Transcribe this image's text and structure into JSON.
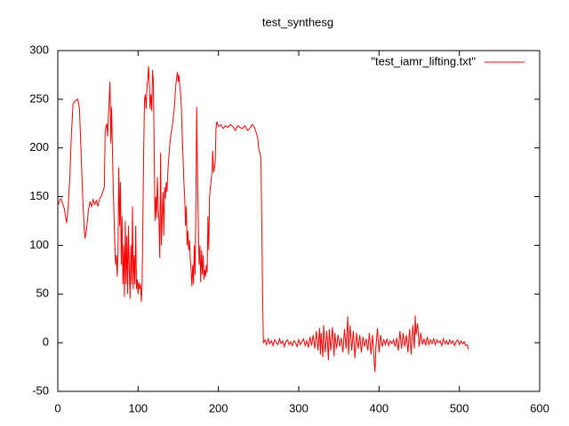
{
  "chart_data": {
    "type": "line",
    "title": "test_synthesg",
    "x": [
      0,
      2,
      4,
      6,
      8,
      10,
      11,
      13,
      15,
      17,
      19,
      21,
      23,
      25,
      27,
      29,
      31,
      33,
      34,
      36,
      38,
      40,
      42,
      44,
      46,
      48,
      50,
      52,
      54,
      56,
      58,
      59,
      61,
      62,
      63,
      65,
      66,
      67,
      68,
      69,
      70,
      71,
      72,
      73,
      74,
      75,
      76,
      77,
      78,
      79,
      80,
      81,
      82,
      83,
      84,
      85,
      86,
      87,
      88,
      89,
      90,
      91,
      92,
      93,
      94,
      95,
      96,
      97,
      98,
      99,
      100,
      101,
      102,
      103,
      104,
      105,
      106,
      107,
      108,
      109,
      110,
      111,
      112,
      113,
      114,
      115,
      116,
      117,
      118,
      119,
      120,
      121,
      122,
      123,
      124,
      125,
      126,
      127,
      128,
      129,
      130,
      131,
      132,
      133,
      134,
      135,
      136,
      137,
      139,
      141,
      143,
      145,
      147,
      149,
      150,
      151,
      152,
      153,
      154,
      155,
      156,
      157,
      158,
      159,
      160,
      161,
      162,
      163,
      164,
      165,
      166,
      167,
      168,
      169,
      170,
      171,
      172,
      173,
      174,
      175,
      176,
      177,
      178,
      179,
      180,
      181,
      182,
      183,
      184,
      185,
      186,
      187,
      188,
      189,
      190,
      192,
      193,
      194,
      196,
      197,
      198,
      200,
      203,
      206,
      209,
      212,
      215,
      218,
      221,
      224,
      227,
      230,
      233,
      236,
      239,
      242,
      245,
      247,
      249,
      250,
      251,
      252,
      253,
      254,
      255,
      256,
      258,
      260,
      262,
      264,
      266,
      268,
      270,
      272,
      274,
      276,
      278,
      280,
      282,
      284,
      286,
      288,
      290,
      292,
      294,
      296,
      298,
      300,
      302,
      304,
      306,
      308,
      310,
      312,
      314,
      316,
      318,
      320,
      322,
      324,
      326,
      327,
      328,
      330,
      331,
      333,
      335,
      337,
      338,
      340,
      342,
      344,
      345,
      347,
      349,
      351,
      353,
      355,
      357,
      359,
      361,
      362,
      364,
      366,
      368,
      370,
      372,
      374,
      376,
      378,
      380,
      382,
      384,
      386,
      388,
      390,
      392,
      394,
      395,
      396,
      398,
      400,
      402,
      404,
      406,
      408,
      410,
      412,
      414,
      416,
      418,
      420,
      422,
      424,
      426,
      428,
      430,
      432,
      434,
      436,
      438,
      440,
      442,
      444,
      445,
      446,
      448,
      450,
      452,
      454,
      456,
      458,
      460,
      462,
      464,
      466,
      468,
      470,
      472,
      474,
      476,
      478,
      480,
      482,
      484,
      486,
      488,
      490,
      492,
      494,
      496,
      498,
      500,
      502,
      504,
      506,
      508,
      510,
      511
    ],
    "series": [
      {
        "name": "\"test_iamr_lifting.txt\"",
        "color": "#ff0000",
        "values": [
          140,
          146,
          148,
          143,
          138,
          128,
          123,
          140,
          170,
          215,
          245,
          248,
          249,
          250,
          240,
          195,
          150,
          115,
          107,
          118,
          135,
          145,
          140,
          147,
          142,
          146,
          140,
          148,
          150,
          155,
          160,
          218,
          225,
          212,
          232,
          268,
          205,
          242,
          200,
          160,
          130,
          100,
          80,
          90,
          68,
          95,
          180,
          120,
          165,
          80,
          130,
          60,
          100,
          47,
          125,
          60,
          110,
          50,
          120,
          75,
          45,
          100,
          60,
          140,
          55,
          90,
          60,
          120,
          55,
          65,
          50,
          62,
          55,
          60,
          42,
          60,
          130,
          200,
          250,
          255,
          240,
          262,
          270,
          284,
          265,
          240,
          255,
          238,
          280,
          268,
          200,
          125,
          150,
          128,
          170,
          140,
          125,
          87,
          195,
          100,
          130,
          155,
          110,
          160,
          148,
          165,
          155,
          175,
          200,
          215,
          225,
          240,
          265,
          278,
          268,
          275,
          262,
          255,
          240,
          210,
          190,
          165,
          150,
          120,
          140,
          100,
          115,
          95,
          105,
          85,
          75,
          58,
          80,
          60,
          100,
          70,
          150,
          242,
          170,
          120,
          80,
          100,
          62,
          95,
          70,
          90,
          65,
          75,
          68,
          80,
          72,
          130,
          95,
          150,
          160,
          175,
          197,
          175,
          185,
          220,
          227,
          222,
          224,
          220,
          223,
          221,
          224,
          222,
          218,
          223,
          221,
          220,
          223,
          218,
          220,
          224,
          221,
          216,
          210,
          200,
          197,
          193,
          190,
          120,
          50,
          0,
          3,
          -2,
          4,
          -1,
          2,
          -3,
          3,
          0,
          -2,
          4,
          -1,
          2,
          -4,
          1,
          3,
          -2,
          1,
          -3,
          2,
          0,
          -4,
          3,
          -2,
          1,
          4,
          -3,
          2,
          -5,
          6,
          -3,
          8,
          -6,
          12,
          -8,
          15,
          -12,
          10,
          -15,
          18,
          -10,
          12,
          -18,
          14,
          -8,
          16,
          -14,
          10,
          -6,
          8,
          -4,
          5,
          -10,
          14,
          -6,
          27,
          -12,
          18,
          -8,
          12,
          -16,
          10,
          -6,
          8,
          -10,
          6,
          -4,
          4,
          -8,
          10,
          -12,
          8,
          -20,
          -30,
          -6,
          15,
          -10,
          8,
          -4,
          3,
          -2,
          4,
          -3,
          2,
          -1,
          3,
          -4,
          5,
          -8,
          12,
          -6,
          10,
          -4,
          8,
          -10,
          14,
          -12,
          18,
          -6,
          28,
          8,
          20,
          -4,
          10,
          -2,
          4,
          -3,
          6,
          -2,
          3,
          -1,
          4,
          -2,
          3,
          0,
          2,
          -3,
          4,
          -1,
          2,
          -2,
          3,
          -1,
          2,
          -3,
          1,
          3,
          -2,
          2,
          -1,
          1,
          -3,
          -2,
          -7
        ]
      }
    ],
    "xlim": [
      0,
      600
    ],
    "xticks": [
      0,
      100,
      200,
      300,
      400,
      500,
      600
    ],
    "ylim": [
      -50,
      300
    ],
    "yticks": [
      -50,
      0,
      50,
      100,
      150,
      200,
      250,
      300
    ],
    "legend": "top-right",
    "grid": false
  }
}
